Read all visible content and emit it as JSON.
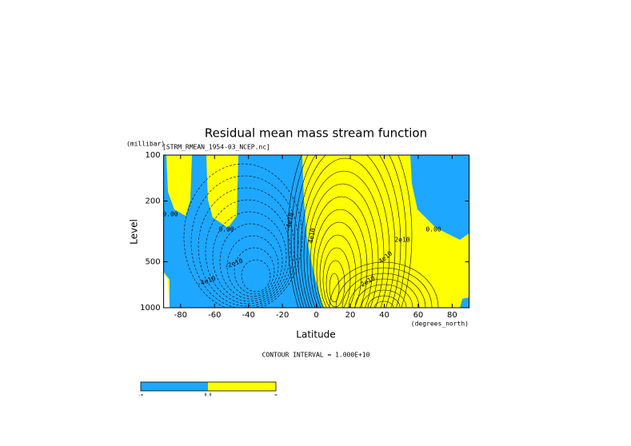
{
  "chart_data": {
    "type": "contour",
    "title": "Residual mean mass stream function",
    "subtitle": "[STRM_RMEAN_1954-03_NCEP.nc]",
    "xlabel": "Latitude",
    "xunit": "(degrees_north)",
    "ylabel": "Level",
    "yunit": "(millibar)",
    "xlim": [
      -90,
      90
    ],
    "xticks": [
      -80,
      -60,
      -40,
      -20,
      0,
      20,
      40,
      60,
      80
    ],
    "ylim": [
      1000,
      100
    ],
    "yticks": [
      100,
      200,
      500,
      1000
    ],
    "ylog": true,
    "negative_color": "#1ea7ff",
    "positive_color": "#ffff00",
    "contour_labels": [
      "0.00",
      "0.00",
      "0.00",
      "-4e10",
      "-2e10",
      "-4e10",
      "2e10",
      "4e10",
      "4e10",
      "2e10"
    ],
    "footer": "CONTOUR INTERVAL = 1.000E+10",
    "colorbar_labels": [
      "-∞",
      "0.0",
      "∞"
    ]
  }
}
